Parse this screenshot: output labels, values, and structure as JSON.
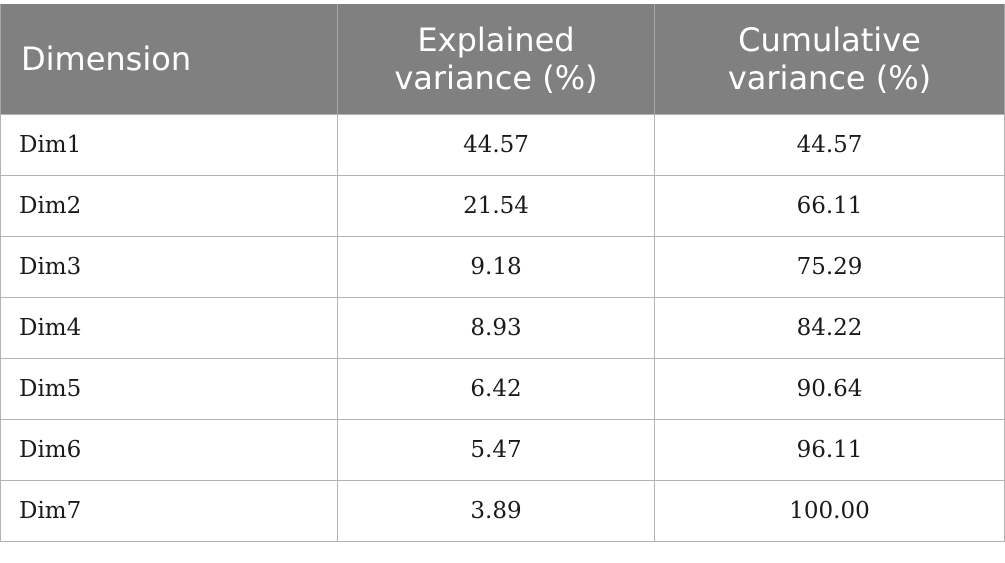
{
  "table": {
    "headers": [
      "Dimension",
      "Explained variance (%)",
      "Cumulative variance (%)"
    ],
    "header_lines": [
      [
        "Dimension"
      ],
      [
        "Explained",
        "variance (%)"
      ],
      [
        "Cumulative",
        "variance (%)"
      ]
    ],
    "rows": [
      [
        "Dim1",
        "44.57",
        "44.57"
      ],
      [
        "Dim2",
        "21.54",
        "66.11"
      ],
      [
        "Dim3",
        "9.18",
        "75.29"
      ],
      [
        "Dim4",
        "8.93",
        "84.22"
      ],
      [
        "Dim5",
        "6.42",
        "90.64"
      ],
      [
        "Dim6",
        "5.47",
        "96.11"
      ],
      [
        "Dim7",
        "3.89",
        "100.00"
      ]
    ]
  },
  "colors": {
    "header_background": "#808080",
    "header_text": "#ffffff",
    "border": "#b3b3b3",
    "body_text": "#1a1a1a"
  }
}
